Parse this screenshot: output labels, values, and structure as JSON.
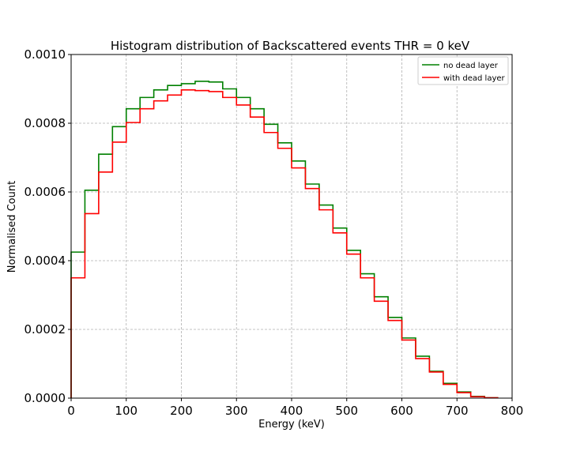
{
  "chart_data": {
    "type": "line",
    "title": "Histogram distribution of Backscattered events THR = 0 keV",
    "xlabel": "Energy (keV)",
    "ylabel": "Normalised Count",
    "xlim": [
      0,
      800
    ],
    "ylim": [
      0,
      0.001
    ],
    "xticks": [
      "0",
      "100",
      "200",
      "300",
      "400",
      "500",
      "600",
      "700",
      "800"
    ],
    "yticks": [
      "0.0000",
      "0.0002",
      "0.0004",
      "0.0006",
      "0.0008",
      "0.0010"
    ],
    "grid": true,
    "legend_position": "top-right",
    "bin_edges": [
      0,
      25,
      50,
      75,
      100,
      125,
      150,
      175,
      200,
      225,
      250,
      275,
      300,
      325,
      350,
      375,
      400,
      425,
      450,
      475,
      500,
      525,
      550,
      575,
      600,
      625,
      650,
      675,
      700,
      725,
      750,
      775
    ],
    "series": [
      {
        "name": "no dead layer",
        "color": "#008000",
        "values": [
          0.000425,
          0.000605,
          0.00071,
          0.00079,
          0.000842,
          0.000875,
          0.000897,
          0.00091,
          0.000915,
          0.000922,
          0.00092,
          0.0009,
          0.000875,
          0.000842,
          0.000797,
          0.000743,
          0.00069,
          0.000623,
          0.000562,
          0.000495,
          0.00043,
          0.000362,
          0.000295,
          0.000235,
          0.000175,
          0.000122,
          7.8e-05,
          4.3e-05,
          1.8e-05,
          5e-06,
          1e-06
        ]
      },
      {
        "name": "with dead layer",
        "color": "#ff0000",
        "values": [
          0.00035,
          0.000537,
          0.000658,
          0.000745,
          0.000802,
          0.000842,
          0.000865,
          0.000882,
          0.000897,
          0.000895,
          0.000892,
          0.000875,
          0.000853,
          0.000818,
          0.000773,
          0.000727,
          0.00067,
          0.00061,
          0.000548,
          0.000481,
          0.000419,
          0.00035,
          0.000282,
          0.000226,
          0.000169,
          0.000115,
          7.6e-05,
          4e-05,
          1.6e-05,
          4e-06,
          1e-06
        ]
      }
    ]
  }
}
